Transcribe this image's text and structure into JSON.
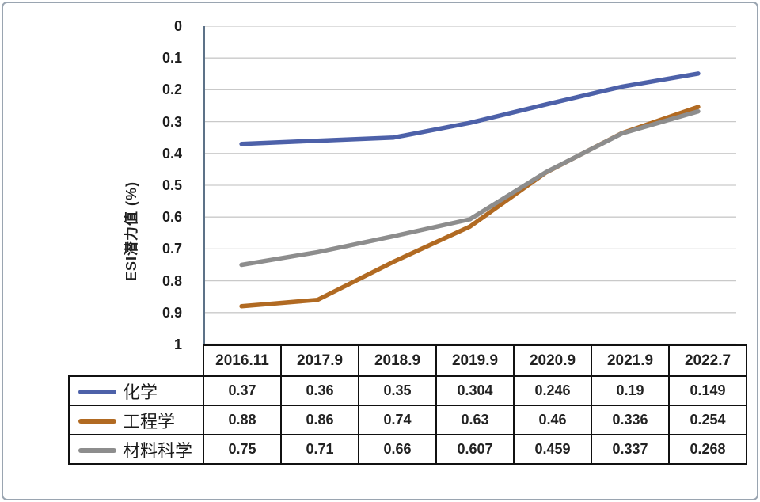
{
  "figure": {
    "background": "#ffffff",
    "frame_border_color": "#9aa5b1"
  },
  "chart_data": {
    "type": "line",
    "title": "",
    "ylabel": "ESI潜力值 (%)",
    "xlabel": "",
    "x": [
      "2016.11",
      "2017.9",
      "2018.9",
      "2019.9",
      "2020.9",
      "2021.9",
      "2022.7"
    ],
    "series": [
      {
        "name": "化学",
        "color": "#4d61a9",
        "values": [
          0.37,
          0.36,
          0.35,
          0.304,
          0.246,
          0.19,
          0.149
        ]
      },
      {
        "name": "工程学",
        "color": "#b16a22",
        "values": [
          0.88,
          0.86,
          0.74,
          0.63,
          0.46,
          0.336,
          0.254
        ]
      },
      {
        "name": "材料科学",
        "color": "#8d8d8d",
        "values": [
          0.75,
          0.71,
          0.66,
          0.607,
          0.459,
          0.337,
          0.268
        ]
      }
    ],
    "ylim": [
      0,
      1
    ],
    "y_axis_inverted": true,
    "yticks": [
      0,
      0.1,
      0.2,
      0.3,
      0.4,
      0.5,
      0.6,
      0.7,
      0.8,
      0.9,
      1
    ],
    "grid": true,
    "gridline_color": "#c9c9c9",
    "axis_line_color": "#5d7288",
    "table_border_color": "#111111",
    "legend_position": "table-left",
    "line_width": 5.5
  }
}
